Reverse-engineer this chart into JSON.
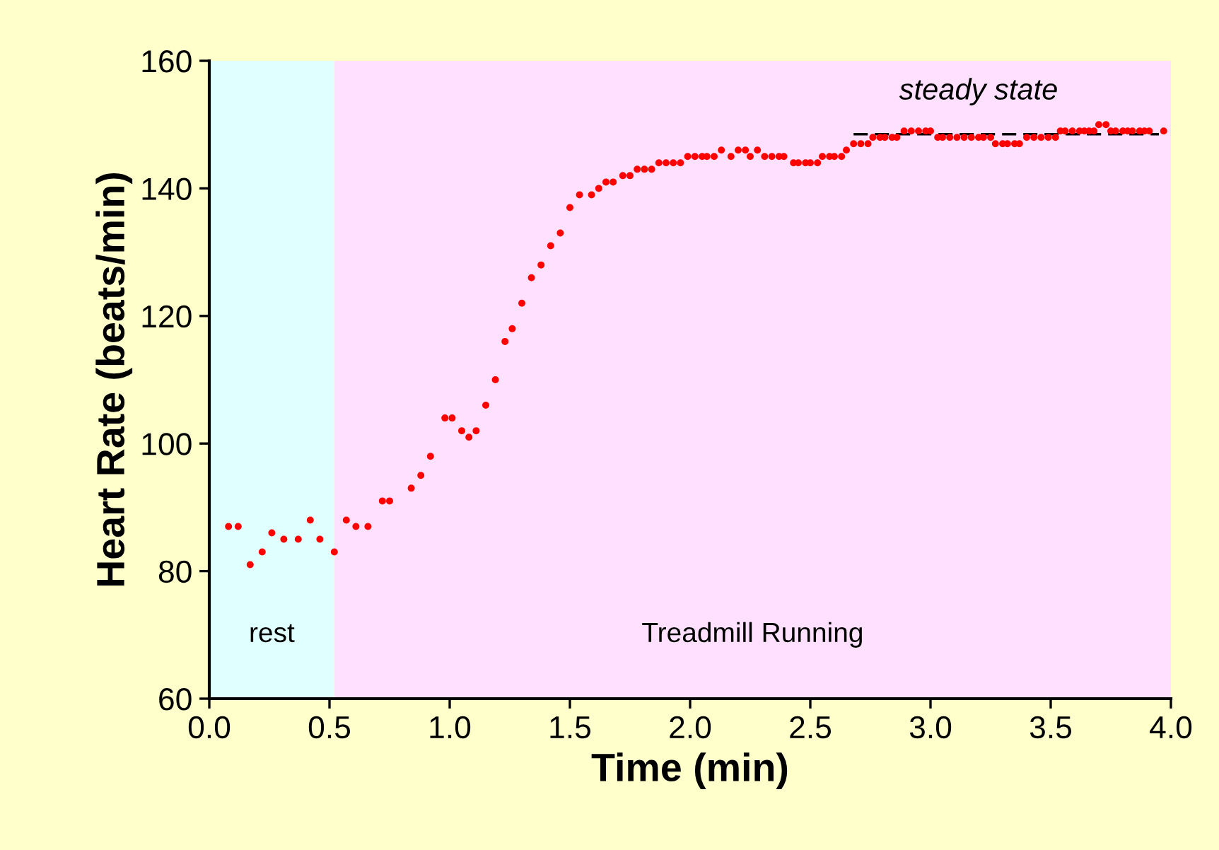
{
  "chart_data": {
    "type": "scatter",
    "xlabel": "Time (min)",
    "ylabel": "Heart Rate (beats/min)",
    "xlim": [
      0,
      4
    ],
    "ylim": [
      60,
      160
    ],
    "xticks": [
      {
        "value": 0,
        "label": "0.0"
      },
      0.5,
      {
        "value": 1,
        "label": "1.0"
      },
      1.5,
      {
        "value": 2,
        "label": "2.0"
      },
      2.5,
      {
        "value": 3,
        "label": "3.0"
      },
      3.5,
      {
        "value": 4,
        "label": "4.0"
      }
    ],
    "yticks": [
      60,
      80,
      100,
      120,
      140,
      160
    ],
    "grid": false,
    "marker": "circle",
    "bands": [
      {
        "axis": "x",
        "from": 0,
        "to": 0.52,
        "label": "rest",
        "color": "#e0ffff"
      },
      {
        "axis": "x",
        "from": 0.52,
        "to": 4,
        "label": "Treadmill Running",
        "color": "#ffe0ff"
      }
    ],
    "annotations": [
      "steady state"
    ],
    "series": [
      {
        "color": "#ff0000",
        "x": [
          0.08,
          0.12,
          0.17,
          0.22,
          0.26,
          0.31,
          0.37,
          0.42,
          0.46,
          0.52,
          0.57,
          0.61,
          0.66,
          0.72,
          0.75,
          0.84,
          0.88,
          0.92,
          0.98,
          1.01,
          1.05,
          1.08,
          1.11,
          1.15,
          1.19,
          1.23,
          1.26,
          1.3,
          1.34,
          1.38,
          1.42,
          1.46,
          1.5,
          1.54,
          1.59,
          1.62,
          1.65,
          1.68,
          1.72,
          1.75,
          1.78,
          1.81,
          1.84,
          1.87,
          1.9,
          1.93,
          1.96,
          1.99,
          2.02,
          2.05,
          2.07,
          2.1,
          2.13,
          2.17,
          2.2,
          2.23,
          2.25,
          2.28,
          2.31,
          2.34,
          2.37,
          2.39,
          2.43,
          2.45,
          2.48,
          2.5,
          2.53,
          2.55,
          2.58,
          2.6,
          2.63,
          2.65,
          2.68,
          2.71,
          2.74,
          2.76,
          2.79,
          2.81,
          2.84,
          2.86,
          2.89,
          2.92,
          2.95,
          2.98,
          3.0,
          3.03,
          3.05,
          3.08,
          3.11,
          3.14,
          3.17,
          3.2,
          3.22,
          3.25,
          3.27,
          3.3,
          3.32,
          3.35,
          3.37,
          3.4,
          3.43,
          3.46,
          3.49,
          3.52,
          3.54,
          3.56,
          3.59,
          3.62,
          3.64,
          3.66,
          3.68,
          3.7,
          3.73,
          3.75,
          3.77,
          3.8,
          3.82,
          3.84,
          3.87,
          3.89,
          3.91,
          3.97
        ],
        "values": [
          87,
          87,
          81,
          83,
          86,
          85,
          85,
          88,
          85,
          83,
          88,
          87,
          87,
          91,
          91,
          93,
          95,
          98,
          104,
          104,
          102,
          101,
          102,
          106,
          110,
          116,
          118,
          122,
          126,
          128,
          131,
          133,
          137,
          139,
          139,
          140,
          141,
          141,
          142,
          142,
          143,
          143,
          143,
          144,
          144,
          144,
          144,
          145,
          145,
          145,
          145,
          145,
          146,
          145,
          146,
          146,
          145,
          146,
          145,
          145,
          145,
          145,
          144,
          144,
          144,
          144,
          144,
          145,
          145,
          145,
          145,
          146,
          147,
          147,
          147,
          148,
          148,
          148,
          148,
          148,
          149,
          149,
          149,
          149,
          149,
          148,
          148,
          148,
          148,
          148,
          148,
          148,
          148,
          148,
          147,
          147,
          147,
          147,
          147,
          148,
          148,
          148,
          148,
          148,
          149,
          149,
          149,
          149,
          149,
          149,
          149,
          150,
          150,
          149,
          149,
          149,
          149,
          149,
          149,
          149,
          149,
          149
        ]
      },
      {
        "type": "line",
        "color": "#000000",
        "line_style": "dashed",
        "marker": "none",
        "x": [
          2.68,
          3.95
        ],
        "values": [
          148.5,
          148.5
        ]
      }
    ]
  }
}
